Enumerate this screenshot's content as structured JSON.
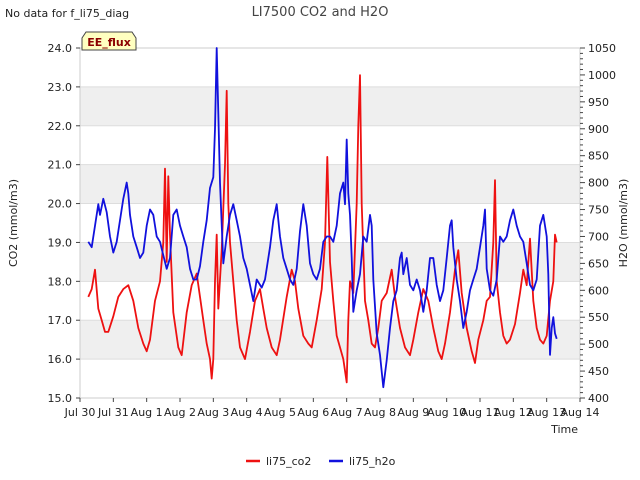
{
  "chart_data": {
    "type": "line",
    "title": "LI7500 CO2 and H2O",
    "note": "No data for f_li75_diag",
    "badge": "EE_flux",
    "xlabel": "Time",
    "ylabel_left": "CO2 (mmol/m3)",
    "ylabel_right": "H2O (mmol/m3)",
    "ylim_left": [
      15.0,
      24.0
    ],
    "ylim_right": [
      400,
      1050
    ],
    "xlim": [
      0,
      15
    ],
    "x_ticks": [
      {
        "x": 0,
        "label": "Jul 30"
      },
      {
        "x": 1,
        "label": "Jul 31"
      },
      {
        "x": 2,
        "label": "Aug 1"
      },
      {
        "x": 3,
        "label": "Aug 2"
      },
      {
        "x": 4,
        "label": "Aug 3"
      },
      {
        "x": 5,
        "label": "Aug 4"
      },
      {
        "x": 6,
        "label": "Aug 5"
      },
      {
        "x": 7,
        "label": "Aug 6"
      },
      {
        "x": 8,
        "label": "Aug 7"
      },
      {
        "x": 9,
        "label": "Aug 8"
      },
      {
        "x": 10,
        "label": "Aug 9"
      },
      {
        "x": 11,
        "label": "Aug 10"
      },
      {
        "x": 12,
        "label": "Aug 11"
      },
      {
        "x": 13,
        "label": "Aug 12"
      },
      {
        "x": 14,
        "label": "Aug 13"
      },
      {
        "x": 15,
        "label": "Aug 14"
      }
    ],
    "y_left_ticks": [
      "15.0",
      "16.0",
      "17.0",
      "18.0",
      "19.0",
      "20.0",
      "21.0",
      "22.0",
      "23.0",
      "24.0"
    ],
    "y_right_ticks": [
      "400",
      "450",
      "500",
      "550",
      "600",
      "650",
      "700",
      "750",
      "800",
      "850",
      "900",
      "950",
      "1000",
      "1050"
    ],
    "colors": {
      "co2": "#ee1111",
      "h2o": "#1111dd",
      "band": "#efefef",
      "grid": "#dddddd"
    },
    "series": [
      {
        "name": "li75_co2",
        "axis": "left",
        "points": [
          [
            0.25,
            17.6
          ],
          [
            0.35,
            17.8
          ],
          [
            0.45,
            18.3
          ],
          [
            0.55,
            17.3
          ],
          [
            0.65,
            17.0
          ],
          [
            0.75,
            16.7
          ],
          [
            0.85,
            16.7
          ],
          [
            1.0,
            17.1
          ],
          [
            1.15,
            17.6
          ],
          [
            1.3,
            17.8
          ],
          [
            1.45,
            17.9
          ],
          [
            1.6,
            17.5
          ],
          [
            1.75,
            16.8
          ],
          [
            1.9,
            16.4
          ],
          [
            2.0,
            16.2
          ],
          [
            2.1,
            16.5
          ],
          [
            2.25,
            17.5
          ],
          [
            2.4,
            18.0
          ],
          [
            2.5,
            19.0
          ],
          [
            2.55,
            20.9
          ],
          [
            2.6,
            18.5
          ],
          [
            2.65,
            20.7
          ],
          [
            2.7,
            19.2
          ],
          [
            2.8,
            17.2
          ],
          [
            2.95,
            16.3
          ],
          [
            3.05,
            16.1
          ],
          [
            3.2,
            17.2
          ],
          [
            3.35,
            17.9
          ],
          [
            3.5,
            18.2
          ],
          [
            3.6,
            17.6
          ],
          [
            3.7,
            17.0
          ],
          [
            3.8,
            16.4
          ],
          [
            3.9,
            16.0
          ],
          [
            3.95,
            15.5
          ],
          [
            4.0,
            16.0
          ],
          [
            4.05,
            18.0
          ],
          [
            4.1,
            19.2
          ],
          [
            4.15,
            17.3
          ],
          [
            4.25,
            18.8
          ],
          [
            4.35,
            21.0
          ],
          [
            4.4,
            22.9
          ],
          [
            4.45,
            20.0
          ],
          [
            4.5,
            19.0
          ],
          [
            4.6,
            18.0
          ],
          [
            4.7,
            17.0
          ],
          [
            4.8,
            16.3
          ],
          [
            4.95,
            16.0
          ],
          [
            5.1,
            16.7
          ],
          [
            5.25,
            17.5
          ],
          [
            5.4,
            17.8
          ],
          [
            5.5,
            17.3
          ],
          [
            5.6,
            16.8
          ],
          [
            5.75,
            16.3
          ],
          [
            5.9,
            16.1
          ],
          [
            6.0,
            16.5
          ],
          [
            6.2,
            17.6
          ],
          [
            6.35,
            18.3
          ],
          [
            6.45,
            18.0
          ],
          [
            6.55,
            17.3
          ],
          [
            6.7,
            16.6
          ],
          [
            6.85,
            16.4
          ],
          [
            6.95,
            16.3
          ],
          [
            7.1,
            17.0
          ],
          [
            7.25,
            17.8
          ],
          [
            7.35,
            19.0
          ],
          [
            7.42,
            21.2
          ],
          [
            7.5,
            18.5
          ],
          [
            7.6,
            17.5
          ],
          [
            7.7,
            16.6
          ],
          [
            7.8,
            16.3
          ],
          [
            7.9,
            16.0
          ],
          [
            8.0,
            15.4
          ],
          [
            8.05,
            17.0
          ],
          [
            8.1,
            18.0
          ],
          [
            8.2,
            17.7
          ],
          [
            8.3,
            20.0
          ],
          [
            8.35,
            22.0
          ],
          [
            8.4,
            23.3
          ],
          [
            8.45,
            20.0
          ],
          [
            8.55,
            17.5
          ],
          [
            8.65,
            17.0
          ],
          [
            8.75,
            16.4
          ],
          [
            8.85,
            16.3
          ],
          [
            8.95,
            16.8
          ],
          [
            9.05,
            17.5
          ],
          [
            9.2,
            17.7
          ],
          [
            9.35,
            18.3
          ],
          [
            9.45,
            17.6
          ],
          [
            9.6,
            16.8
          ],
          [
            9.75,
            16.3
          ],
          [
            9.9,
            16.1
          ],
          [
            10.0,
            16.5
          ],
          [
            10.15,
            17.2
          ],
          [
            10.3,
            17.8
          ],
          [
            10.45,
            17.5
          ],
          [
            10.6,
            16.8
          ],
          [
            10.75,
            16.2
          ],
          [
            10.85,
            16.0
          ],
          [
            10.95,
            16.4
          ],
          [
            11.1,
            17.2
          ],
          [
            11.25,
            18.3
          ],
          [
            11.35,
            18.8
          ],
          [
            11.45,
            17.7
          ],
          [
            11.6,
            16.8
          ],
          [
            11.75,
            16.2
          ],
          [
            11.85,
            15.9
          ],
          [
            11.95,
            16.5
          ],
          [
            12.1,
            17.0
          ],
          [
            12.2,
            17.5
          ],
          [
            12.3,
            17.6
          ],
          [
            12.4,
            19.0
          ],
          [
            12.45,
            20.6
          ],
          [
            12.5,
            18.0
          ],
          [
            12.6,
            17.2
          ],
          [
            12.7,
            16.6
          ],
          [
            12.8,
            16.4
          ],
          [
            12.9,
            16.5
          ],
          [
            13.05,
            16.9
          ],
          [
            13.2,
            17.7
          ],
          [
            13.3,
            18.3
          ],
          [
            13.4,
            17.9
          ],
          [
            13.5,
            19.1
          ],
          [
            13.6,
            17.5
          ],
          [
            13.7,
            16.8
          ],
          [
            13.8,
            16.5
          ],
          [
            13.9,
            16.4
          ],
          [
            14.0,
            16.6
          ],
          [
            14.1,
            17.5
          ],
          [
            14.2,
            18.0
          ],
          [
            14.25,
            19.2
          ],
          [
            14.3,
            19.0
          ]
        ]
      },
      {
        "name": "li75_h2o",
        "axis": "right",
        "points": [
          [
            0.25,
            690
          ],
          [
            0.35,
            680
          ],
          [
            0.45,
            720
          ],
          [
            0.55,
            760
          ],
          [
            0.6,
            740
          ],
          [
            0.7,
            770
          ],
          [
            0.8,
            745
          ],
          [
            0.9,
            700
          ],
          [
            1.0,
            670
          ],
          [
            1.1,
            690
          ],
          [
            1.2,
            730
          ],
          [
            1.3,
            770
          ],
          [
            1.4,
            800
          ],
          [
            1.45,
            780
          ],
          [
            1.5,
            740
          ],
          [
            1.6,
            700
          ],
          [
            1.7,
            680
          ],
          [
            1.8,
            660
          ],
          [
            1.9,
            670
          ],
          [
            2.0,
            720
          ],
          [
            2.1,
            750
          ],
          [
            2.2,
            740
          ],
          [
            2.3,
            700
          ],
          [
            2.4,
            690
          ],
          [
            2.5,
            665
          ],
          [
            2.6,
            640
          ],
          [
            2.7,
            660
          ],
          [
            2.8,
            740
          ],
          [
            2.9,
            750
          ],
          [
            3.0,
            720
          ],
          [
            3.1,
            700
          ],
          [
            3.2,
            680
          ],
          [
            3.3,
            640
          ],
          [
            3.4,
            620
          ],
          [
            3.5,
            620
          ],
          [
            3.6,
            645
          ],
          [
            3.7,
            690
          ],
          [
            3.8,
            730
          ],
          [
            3.9,
            790
          ],
          [
            4.0,
            810
          ],
          [
            4.05,
            900
          ],
          [
            4.1,
            1050
          ],
          [
            4.15,
            930
          ],
          [
            4.2,
            800
          ],
          [
            4.3,
            650
          ],
          [
            4.4,
            700
          ],
          [
            4.5,
            740
          ],
          [
            4.6,
            760
          ],
          [
            4.7,
            730
          ],
          [
            4.8,
            700
          ],
          [
            4.9,
            660
          ],
          [
            5.0,
            640
          ],
          [
            5.1,
            610
          ],
          [
            5.2,
            580
          ],
          [
            5.3,
            620
          ],
          [
            5.45,
            605
          ],
          [
            5.55,
            620
          ],
          [
            5.7,
            680
          ],
          [
            5.8,
            730
          ],
          [
            5.9,
            760
          ],
          [
            6.0,
            700
          ],
          [
            6.1,
            660
          ],
          [
            6.2,
            640
          ],
          [
            6.3,
            620
          ],
          [
            6.4,
            610
          ],
          [
            6.5,
            640
          ],
          [
            6.6,
            710
          ],
          [
            6.7,
            760
          ],
          [
            6.8,
            720
          ],
          [
            6.9,
            650
          ],
          [
            7.0,
            630
          ],
          [
            7.1,
            620
          ],
          [
            7.2,
            640
          ],
          [
            7.3,
            690
          ],
          [
            7.4,
            700
          ],
          [
            7.5,
            700
          ],
          [
            7.6,
            690
          ],
          [
            7.7,
            720
          ],
          [
            7.8,
            780
          ],
          [
            7.9,
            800
          ],
          [
            7.95,
            760
          ],
          [
            8.0,
            880
          ],
          [
            8.05,
            780
          ],
          [
            8.1,
            740
          ],
          [
            8.15,
            660
          ],
          [
            8.2,
            560
          ],
          [
            8.3,
            600
          ],
          [
            8.4,
            630
          ],
          [
            8.5,
            700
          ],
          [
            8.6,
            690
          ],
          [
            8.7,
            740
          ],
          [
            8.75,
            720
          ],
          [
            8.8,
            620
          ],
          [
            8.9,
            520
          ],
          [
            9.0,
            480
          ],
          [
            9.1,
            420
          ],
          [
            9.2,
            470
          ],
          [
            9.3,
            530
          ],
          [
            9.4,
            580
          ],
          [
            9.5,
            600
          ],
          [
            9.6,
            660
          ],
          [
            9.65,
            670
          ],
          [
            9.7,
            630
          ],
          [
            9.8,
            660
          ],
          [
            9.9,
            610
          ],
          [
            10.0,
            600
          ],
          [
            10.1,
            620
          ],
          [
            10.2,
            600
          ],
          [
            10.3,
            560
          ],
          [
            10.4,
            600
          ],
          [
            10.5,
            660
          ],
          [
            10.6,
            660
          ],
          [
            10.7,
            610
          ],
          [
            10.8,
            580
          ],
          [
            10.9,
            600
          ],
          [
            11.0,
            660
          ],
          [
            11.1,
            720
          ],
          [
            11.15,
            730
          ],
          [
            11.2,
            680
          ],
          [
            11.3,
            620
          ],
          [
            11.4,
            580
          ],
          [
            11.5,
            530
          ],
          [
            11.6,
            560
          ],
          [
            11.7,
            600
          ],
          [
            11.8,
            620
          ],
          [
            11.9,
            640
          ],
          [
            12.0,
            680
          ],
          [
            12.1,
            720
          ],
          [
            12.15,
            750
          ],
          [
            12.2,
            640
          ],
          [
            12.3,
            600
          ],
          [
            12.4,
            590
          ],
          [
            12.5,
            620
          ],
          [
            12.6,
            700
          ],
          [
            12.7,
            690
          ],
          [
            12.8,
            700
          ],
          [
            12.9,
            730
          ],
          [
            13.0,
            750
          ],
          [
            13.1,
            720
          ],
          [
            13.2,
            700
          ],
          [
            13.3,
            690
          ],
          [
            13.4,
            650
          ],
          [
            13.5,
            610
          ],
          [
            13.6,
            600
          ],
          [
            13.7,
            620
          ],
          [
            13.8,
            720
          ],
          [
            13.9,
            740
          ],
          [
            14.0,
            700
          ],
          [
            14.05,
            630
          ],
          [
            14.1,
            480
          ],
          [
            14.15,
            530
          ],
          [
            14.2,
            550
          ],
          [
            14.25,
            520
          ],
          [
            14.3,
            510
          ]
        ]
      }
    ],
    "legend": [
      {
        "label": "li75_co2",
        "series": "li75_co2"
      },
      {
        "label": "li75_h2o",
        "series": "li75_h2o"
      }
    ],
    "legend_position": "bottom-center"
  }
}
